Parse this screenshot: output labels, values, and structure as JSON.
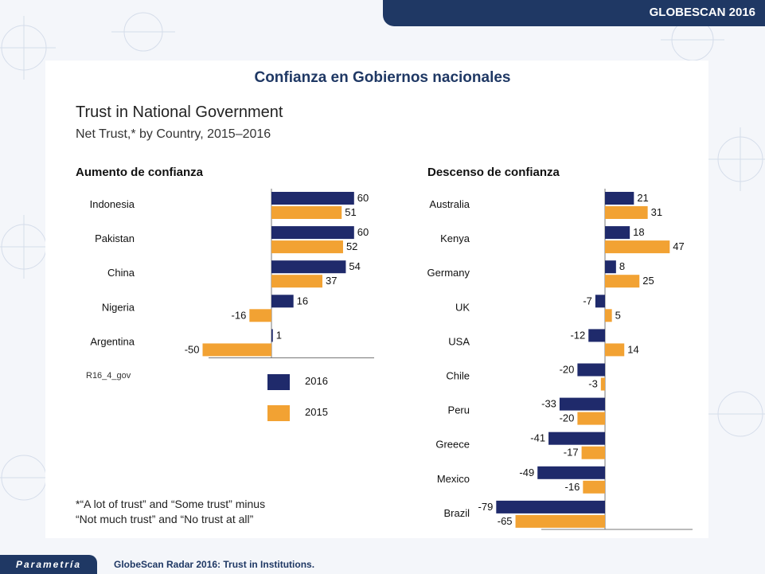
{
  "header": {
    "brand": "GLOBESCAN 2016"
  },
  "slide_title": "Confianza en Gobiernos nacionales",
  "chart_title": "Trust in National Government",
  "chart_subtitle": "Net Trust,* by Country, 2015–2016",
  "source_code": "R16_4_gov",
  "footnote": {
    "line1": "*“A lot of trust” and “Some trust” minus",
    "line2": "“Not much trust” and “No trust at all”"
  },
  "legend": [
    {
      "label": "2016",
      "color": "#1f2a6b"
    },
    {
      "label": "2015",
      "color": "#f2a233"
    }
  ],
  "footer": {
    "logo": "Parametría",
    "text": "GlobeScan Radar 2016: Trust in Institutions."
  },
  "chart_data": [
    {
      "type": "bar",
      "orientation": "horizontal",
      "title": "Aumento de confianza",
      "categories": [
        "Indonesia",
        "Pakistan",
        "China",
        "Nigeria",
        "Argentina"
      ],
      "series": [
        {
          "name": "2016",
          "values": [
            60,
            60,
            54,
            16,
            1
          ],
          "color": "#1f2a6b"
        },
        {
          "name": "2015",
          "values": [
            51,
            52,
            37,
            -16,
            -50
          ],
          "color": "#f2a233"
        }
      ]
    },
    {
      "type": "bar",
      "orientation": "horizontal",
      "title": "Descenso de confianza",
      "categories": [
        "Australia",
        "Kenya",
        "Germany",
        "UK",
        "USA",
        "Chile",
        "Peru",
        "Greece",
        "Mexico",
        "Brazil"
      ],
      "series": [
        {
          "name": "2016",
          "values": [
            21,
            18,
            8,
            -7,
            -12,
            -20,
            -33,
            -41,
            -49,
            -79
          ],
          "color": "#1f2a6b"
        },
        {
          "name": "2015",
          "values": [
            31,
            47,
            25,
            5,
            14,
            -3,
            -20,
            -17,
            -16,
            -65
          ],
          "color": "#f2a233"
        }
      ]
    }
  ]
}
